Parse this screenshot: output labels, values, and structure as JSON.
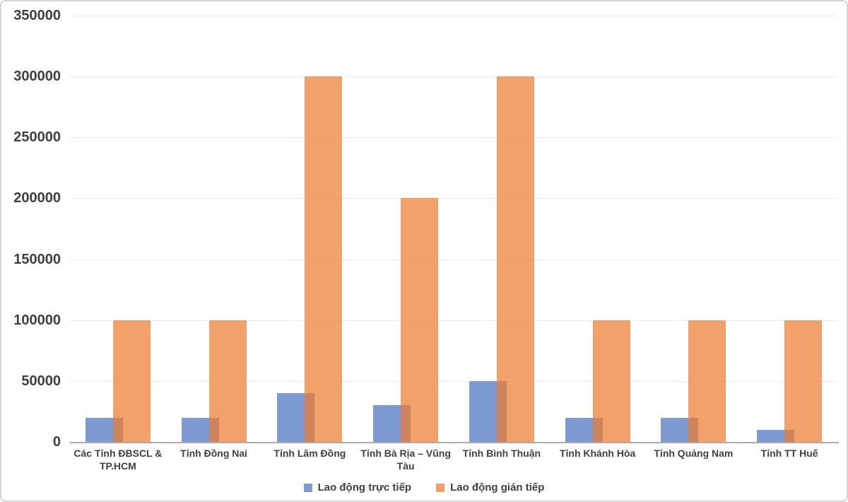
{
  "chart_data": {
    "type": "bar",
    "title": "",
    "categories": [
      "Các Tỉnh ĐBSCL & TP.HCM",
      "Tỉnh Đồng Nai",
      "Tỉnh Lâm Đồng",
      "Tỉnh Bà Rịa – Vũng Tàu",
      "Tỉnh Bình Thuận",
      "Tỉnh Khánh Hòa",
      "Tỉnh Quảng Nam",
      "Tỉnh TT Huế"
    ],
    "series": [
      {
        "name": "Lao động trực tiếp",
        "color": "#7E9AD2",
        "opacity": 1,
        "values": [
          20000,
          20000,
          40000,
          30000,
          50000,
          20000,
          20000,
          10000
        ]
      },
      {
        "name": "Lao động gián tiếp",
        "color": "#ED7D31",
        "opacity": 0.72,
        "values": [
          100000,
          100000,
          300000,
          200000,
          300000,
          100000,
          100000,
          100000
        ]
      }
    ],
    "y_axis": {
      "min": 0,
      "max": 350000,
      "tick_step": 50000,
      "tick_labels": [
        "0",
        "50000",
        "100000",
        "150000",
        "200000",
        "250000",
        "300000",
        "350000"
      ]
    },
    "legend_position": "bottom",
    "grid": true
  },
  "colors": {
    "text": "#404040",
    "gridline": "#ECECEC",
    "axis_line": "#ABABAB",
    "frame_border": "#D6D6D6",
    "background": "#FFFFFF"
  }
}
